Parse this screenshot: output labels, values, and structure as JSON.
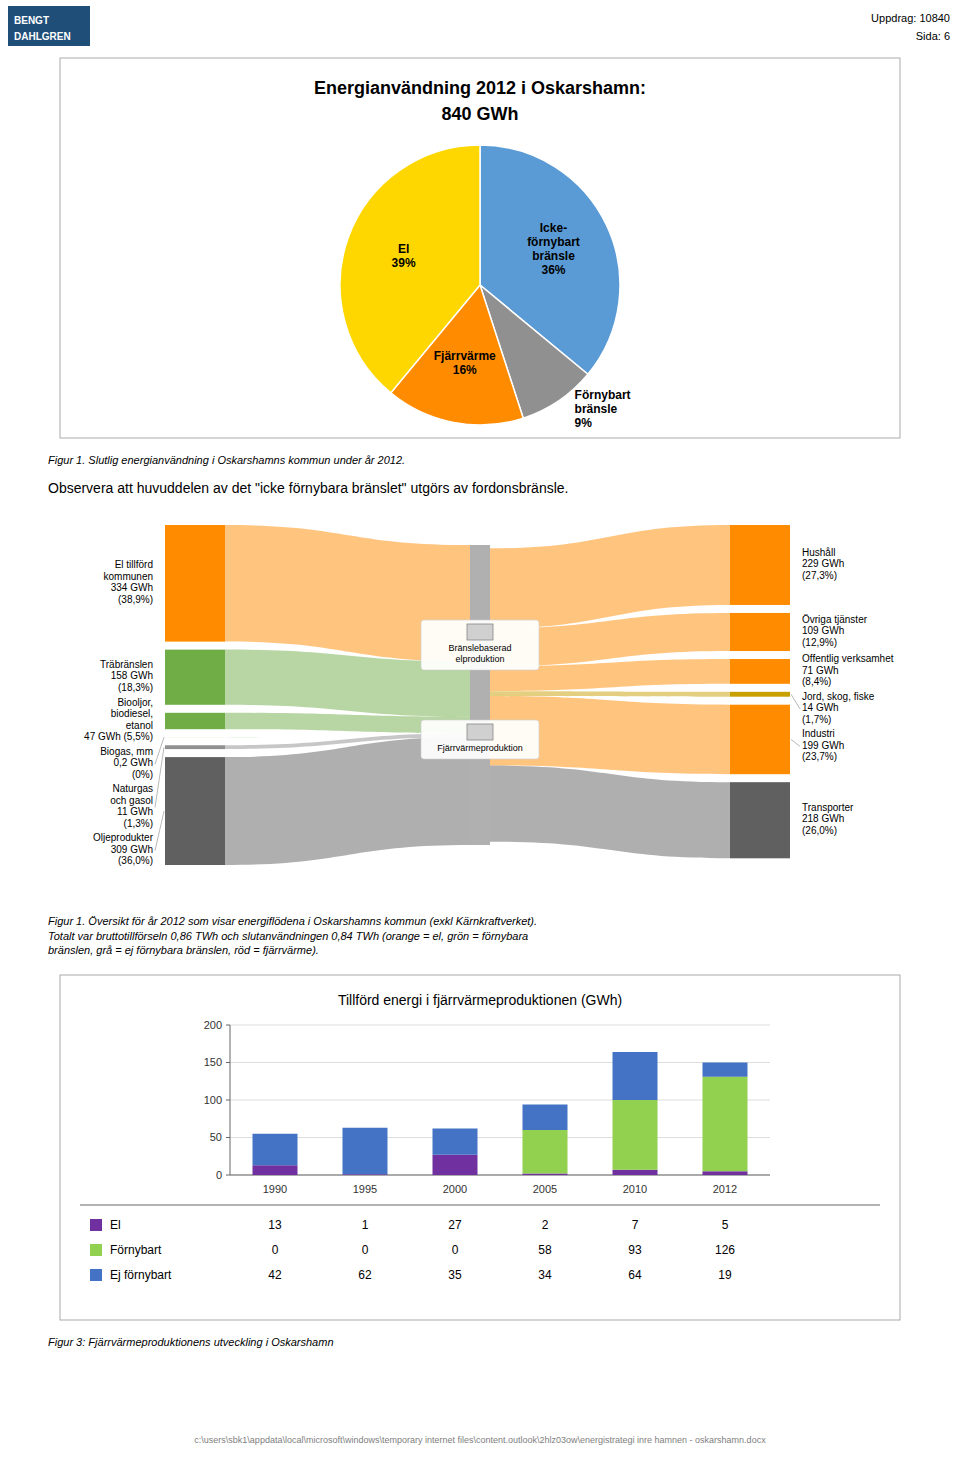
{
  "page": {
    "header_left": [
      "BENGT",
      "DAHLGREN"
    ],
    "header_right": [
      "Uppdrag: 10840",
      "Sida: 6"
    ],
    "footer": "c:\\users\\sbk1\\appdata\\local\\microsoft\\windows\\temporary internet files\\content.outlook\\2hlz03ow\\energistrategi inre hamnen - oskarshamn.docx"
  },
  "chart_data": [
    {
      "type": "pie",
      "title": "Energianvändning 2012 i Oskarshamn:",
      "subtitle": "840 GWh",
      "categories": [
        "Icke-\nförnybart\nbränsle",
        "Förnybart\nbränsle",
        "Fjärrvärme",
        "El"
      ],
      "values": [
        36,
        9,
        16,
        39
      ],
      "value_labels": [
        "36%",
        "9%",
        "16%",
        "39%"
      ],
      "colors": [
        "#5B9BD5",
        "#909090",
        "#FF8C00",
        "#FFD700"
      ],
      "data_labels": true,
      "caption": "Figur 1. Slutlig energianvändning i Oskarshamns kommun under år 2012.",
      "annotations": [
        "Observera att huvuddelen av det \"icke förnybara bränslet\" utgörs av fordonsbränsle."
      ]
    },
    {
      "type": "sankey",
      "sources": {
        "labels": [
          "El tillförd\nkommunen\n334 GWh\n(38,9%)",
          "Träbränslen\n158 GWh\n(18,3%)",
          "Biooljor,\nbiodiesel,\netanol\n47 GWh (5,5%)",
          "Biogas, mm\n0,2 GWh\n(0%)",
          "Naturgas\noch gasol\n11 GWh\n(1,3%)",
          "Oljeprodukter\n309 GWh\n(36,0%)"
        ],
        "values": [
          334,
          158,
          47,
          0.2,
          11,
          309
        ],
        "colors": [
          "#FF8C00",
          "#70AD47",
          "#70AD47",
          "#70AD47",
          "#909090",
          "#606060"
        ]
      },
      "targets": {
        "labels": [
          "Hushåll\n229 GWh\n(27,3%)",
          "Övriga tjänster\n109 GWh\n(12,9%)",
          "Offentlig verksamhet\n71 GWh\n(8,4%)",
          "Jord, skog, fiske\n14 GWh\n(1,7%)",
          "Industri\n199 GWh\n(23,7%)",
          "Transporter\n218 GWh\n(26,0%)"
        ],
        "values": [
          229,
          109,
          71,
          14,
          199,
          218
        ],
        "colors": [
          "#FF8C00",
          "#FF8C00",
          "#FF8C00",
          "#C8A000",
          "#FF8C00",
          "#606060"
        ]
      },
      "annotations": [
        "Bränslebaserad\nelproduktion",
        "Fjärrvärmeproduktion"
      ],
      "caption": "Figur 1. Översikt för år 2012 som visar energiflödena i Oskarshamns kommun (exkl Kärnkraftverket).\nTotalt var bruttotillförseln 0,86 TWh och slutanvändningen 0,84 TWh (orange = el, grön = förnybara\nbränslen, grå = ej förnybara bränslen, röd = fjärrvärme)."
    },
    {
      "type": "bar",
      "title": "Tillförd energi i fjärrvärmeproduktionen (GWh)",
      "stacked": true,
      "categories": [
        "1990",
        "1995",
        "2000",
        "2005",
        "2010",
        "2012"
      ],
      "series": [
        {
          "name": "El",
          "color": "#7030A0",
          "values": [
            13,
            1,
            27,
            2,
            7,
            5
          ]
        },
        {
          "name": "Förnybart",
          "color": "#92D050",
          "values": [
            0,
            0,
            0,
            58,
            93,
            126
          ]
        },
        {
          "name": "Ej förnybart",
          "color": "#4472C4",
          "values": [
            42,
            62,
            35,
            34,
            64,
            19
          ]
        }
      ],
      "ylim": [
        0,
        200
      ],
      "yticks": [
        0,
        50,
        100,
        150,
        200
      ],
      "grid": true,
      "legend": "bottom",
      "caption": "Figur 3: Fjärrvärmeproduktionens utveckling i Oskarshamn"
    }
  ]
}
